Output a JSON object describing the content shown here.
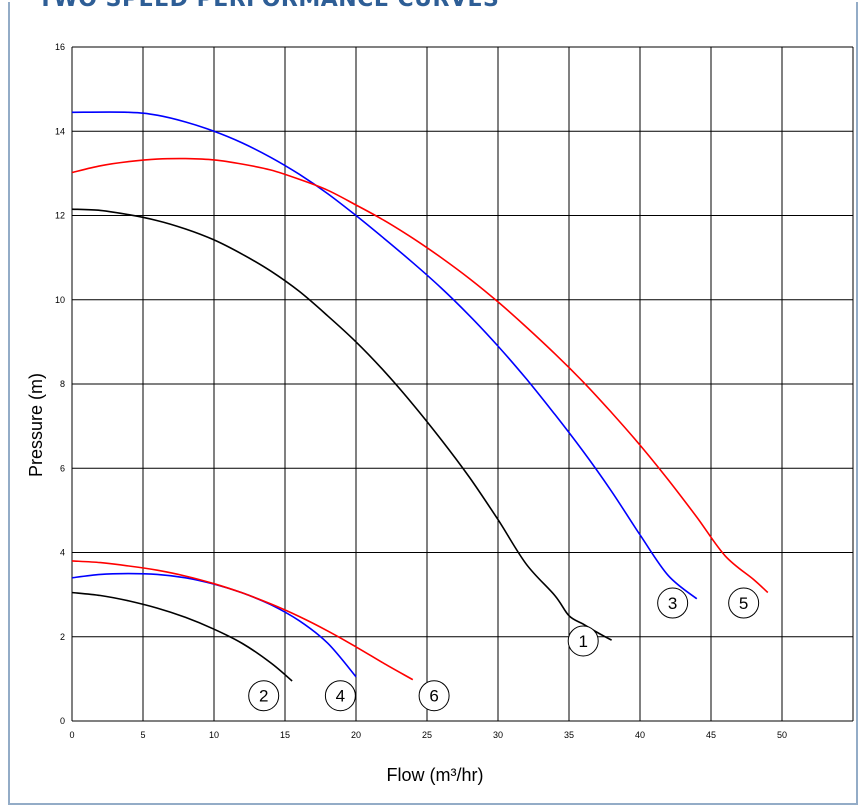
{
  "page": {
    "title": "TWO SPEED PERFORMANCE CURVES"
  },
  "colors": {
    "frame_border": "#93acc7",
    "title": "#2e5e96",
    "grid": "#000000"
  },
  "chart_data": {
    "type": "line",
    "title": "",
    "xlabel": "Flow (m³/hr)",
    "ylabel": "Pressure (m)",
    "xlim": [
      0,
      55
    ],
    "ylim": [
      0,
      16
    ],
    "xticks": [
      0,
      5,
      10,
      15,
      20,
      25,
      30,
      35,
      40,
      45,
      50
    ],
    "yticks": [
      0,
      2,
      4,
      6,
      8,
      10,
      12,
      14,
      16
    ],
    "grid": true,
    "legend": "none",
    "series": [
      {
        "label": "1",
        "color": "#000000",
        "x": [
          0,
          2,
          4,
          6,
          8,
          10,
          12,
          14,
          16,
          18,
          20,
          22,
          24,
          26,
          28,
          30,
          32,
          34,
          35,
          36,
          37,
          38
        ],
        "y": [
          12.15,
          12.12,
          12.02,
          11.88,
          11.68,
          11.42,
          11.08,
          10.68,
          10.2,
          9.62,
          9.0,
          8.3,
          7.52,
          6.68,
          5.78,
          4.78,
          3.72,
          2.98,
          2.5,
          2.3,
          2.1,
          1.92
        ],
        "label_pos": [
          36,
          1.9
        ]
      },
      {
        "label": "2",
        "color": "#000000",
        "x": [
          0,
          2,
          4,
          6,
          8,
          10,
          12,
          14,
          15.5
        ],
        "y": [
          3.05,
          2.98,
          2.85,
          2.68,
          2.46,
          2.18,
          1.84,
          1.38,
          0.95
        ],
        "label_pos": [
          13.5,
          0.6
        ]
      },
      {
        "label": "3",
        "color": "#0000ff",
        "x": [
          0,
          4,
          6,
          8,
          10,
          12,
          14,
          16,
          18,
          20,
          22,
          24,
          26,
          28,
          30,
          32,
          34,
          36,
          38,
          40,
          42,
          44
        ],
        "y": [
          14.45,
          14.45,
          14.38,
          14.22,
          14.0,
          13.72,
          13.38,
          12.98,
          12.52,
          12.0,
          11.45,
          10.88,
          10.28,
          9.62,
          8.9,
          8.12,
          7.28,
          6.4,
          5.45,
          4.42,
          3.45,
          2.9
        ],
        "label_pos": [
          42.3,
          2.8
        ]
      },
      {
        "label": "4",
        "color": "#0000ff",
        "x": [
          0,
          2,
          4,
          6,
          8,
          10,
          12,
          14,
          16,
          18,
          20
        ],
        "y": [
          3.4,
          3.48,
          3.5,
          3.48,
          3.4,
          3.25,
          3.04,
          2.76,
          2.38,
          1.85,
          1.05
        ],
        "label_pos": [
          18.9,
          0.6
        ]
      },
      {
        "label": "5",
        "color": "#ff0000",
        "x": [
          0,
          2,
          4,
          6,
          8,
          10,
          12,
          14,
          16,
          18,
          20,
          22,
          24,
          26,
          28,
          30,
          32,
          34,
          36,
          38,
          40,
          42,
          44,
          46,
          48,
          49
        ],
        "y": [
          13.02,
          13.18,
          13.28,
          13.34,
          13.35,
          13.32,
          13.22,
          13.08,
          12.86,
          12.6,
          12.25,
          11.88,
          11.46,
          11.0,
          10.5,
          9.95,
          9.35,
          8.72,
          8.05,
          7.32,
          6.55,
          5.72,
          4.84,
          3.92,
          3.36,
          3.05
        ],
        "label_pos": [
          47.3,
          2.8
        ]
      },
      {
        "label": "6",
        "color": "#ff0000",
        "x": [
          0,
          2,
          4,
          6,
          8,
          10,
          12,
          14,
          16,
          18,
          20,
          22,
          24
        ],
        "y": [
          3.8,
          3.76,
          3.68,
          3.58,
          3.44,
          3.26,
          3.04,
          2.78,
          2.48,
          2.14,
          1.76,
          1.36,
          0.98
        ],
        "label_pos": [
          25.5,
          0.6
        ]
      }
    ]
  }
}
